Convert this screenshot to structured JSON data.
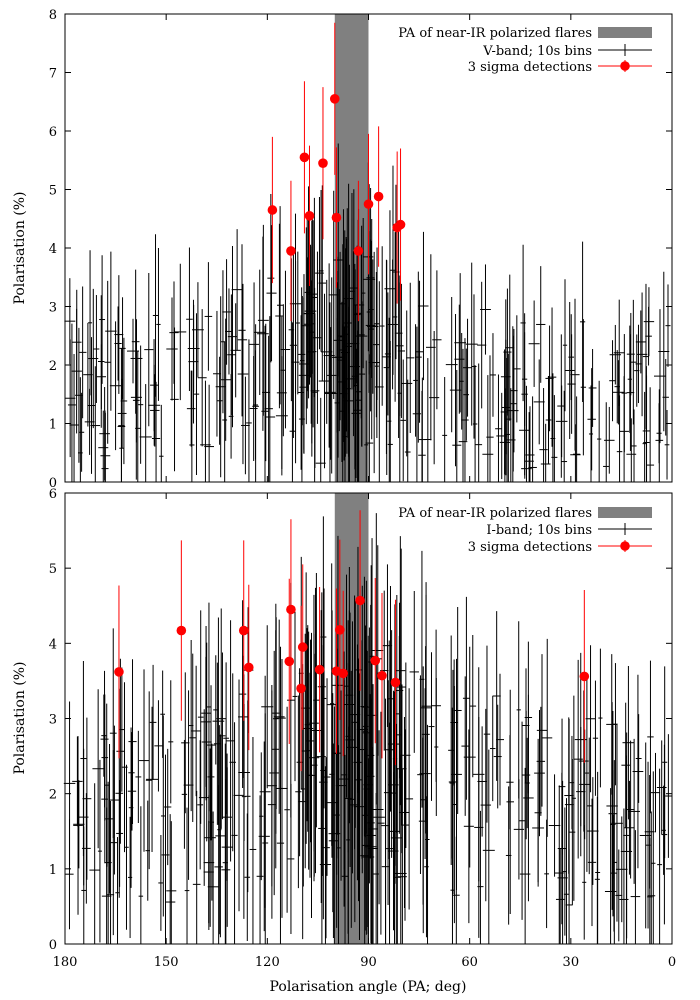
{
  "colors": {
    "band": "#808080",
    "data": "#000000",
    "detection": "#ff0000"
  },
  "chart_data": [
    {
      "type": "scatter",
      "title": "",
      "xlabel": "",
      "ylabel": "Polarisation (%)",
      "xlim": [
        180,
        0
      ],
      "ylim": [
        0,
        8
      ],
      "xticks": [
        "180",
        "150",
        "120",
        "90",
        "60",
        "30",
        "0"
      ],
      "xtick_values": [
        180,
        150,
        120,
        90,
        60,
        30,
        0
      ],
      "yticks": [
        "0",
        "1",
        "2",
        "3",
        "4",
        "5",
        "6",
        "7",
        "8"
      ],
      "ytick_values": [
        0,
        1,
        2,
        3,
        4,
        5,
        6,
        7,
        8
      ],
      "band": {
        "name": "PA of near-IR polarized flares",
        "range": [
          90,
          100
        ]
      },
      "series": [
        {
          "name": "V-band; 10s bins",
          "style": "errorbar-black",
          "n_points": 330,
          "y_center_typical": 1.5,
          "y_max_envelope_near_95deg": 4.2,
          "description": "dense cloud of ~330 low-S/N measurements spanning 0-180 deg, values 0-4 % with large error bars"
        },
        {
          "name": "3 sigma detections",
          "style": "red-marker-errorbar",
          "points": [
            {
              "x": 100,
              "y": 6.55,
              "err": 1.3
            },
            {
              "x": 109,
              "y": 5.55,
              "err": 1.3
            },
            {
              "x": 103.5,
              "y": 5.45,
              "err": 1.3
            },
            {
              "x": 118.5,
              "y": 4.65,
              "err": 1.25
            },
            {
              "x": 107.5,
              "y": 4.55,
              "err": 1.2
            },
            {
              "x": 99.5,
              "y": 4.52,
              "err": 1.2
            },
            {
              "x": 87,
              "y": 4.88,
              "err": 1.2
            },
            {
              "x": 90,
              "y": 4.75,
              "err": 1.2
            },
            {
              "x": 113,
              "y": 3.95,
              "err": 1.2
            },
            {
              "x": 93,
              "y": 3.95,
              "err": 1.2
            },
            {
              "x": 80.5,
              "y": 4.4,
              "err": 1.3
            },
            {
              "x": 81.5,
              "y": 4.35,
              "err": 1.3
            }
          ]
        }
      ],
      "legend": [
        "PA of near-IR polarized flares",
        "V-band; 10s bins",
        "3 sigma detections"
      ],
      "legend_position": "top-right",
      "grid": false
    },
    {
      "type": "scatter",
      "title": "",
      "xlabel": "Polarisation angle (PA; deg)",
      "ylabel": "Polarisation (%)",
      "xlim": [
        180,
        0
      ],
      "ylim": [
        0,
        6
      ],
      "xticks": [
        "180",
        "150",
        "120",
        "90",
        "60",
        "30",
        "0"
      ],
      "xtick_values": [
        180,
        150,
        120,
        90,
        60,
        30,
        0
      ],
      "yticks": [
        "0",
        "1",
        "2",
        "3",
        "4",
        "5",
        "6"
      ],
      "ytick_values": [
        0,
        1,
        2,
        3,
        4,
        5,
        6
      ],
      "band": {
        "name": "PA of near-IR polarized flares",
        "range": [
          90,
          100
        ]
      },
      "series": [
        {
          "name": "I-band; 10s bins",
          "style": "errorbar-black",
          "n_points": 360,
          "y_center_typical": 1.8,
          "y_max_envelope_near_95deg": 4.6,
          "description": "dense cloud of ~360 measurements spanning 0-180 deg, values 0-4.5 % with large error bars"
        },
        {
          "name": "3 sigma detections",
          "style": "red-marker-errorbar",
          "points": [
            {
              "x": 164,
              "y": 3.62,
              "err": 1.15
            },
            {
              "x": 145.5,
              "y": 4.17,
              "err": 1.2
            },
            {
              "x": 127,
              "y": 4.17,
              "err": 1.2
            },
            {
              "x": 125.5,
              "y": 3.68,
              "err": 1.1
            },
            {
              "x": 113,
              "y": 4.45,
              "err": 1.2
            },
            {
              "x": 113.5,
              "y": 3.76,
              "err": 1.1
            },
            {
              "x": 109.5,
              "y": 3.95,
              "err": 1.1
            },
            {
              "x": 110,
              "y": 3.4,
              "err": 1.1
            },
            {
              "x": 104.5,
              "y": 3.65,
              "err": 1.1
            },
            {
              "x": 98.5,
              "y": 4.18,
              "err": 1.2
            },
            {
              "x": 99.5,
              "y": 3.63,
              "err": 1.1
            },
            {
              "x": 97.5,
              "y": 3.6,
              "err": 1.1
            },
            {
              "x": 92.5,
              "y": 4.57,
              "err": 1.2
            },
            {
              "x": 88,
              "y": 3.77,
              "err": 1.1
            },
            {
              "x": 86,
              "y": 3.57,
              "err": 1.1
            },
            {
              "x": 82,
              "y": 3.48,
              "err": 1.1
            },
            {
              "x": 26,
              "y": 3.56,
              "err": 1.15
            }
          ]
        }
      ],
      "legend": [
        "PA of near-IR polarized flares",
        "I-band; 10s bins",
        "3 sigma detections"
      ],
      "legend_position": "top-right",
      "grid": false
    }
  ]
}
